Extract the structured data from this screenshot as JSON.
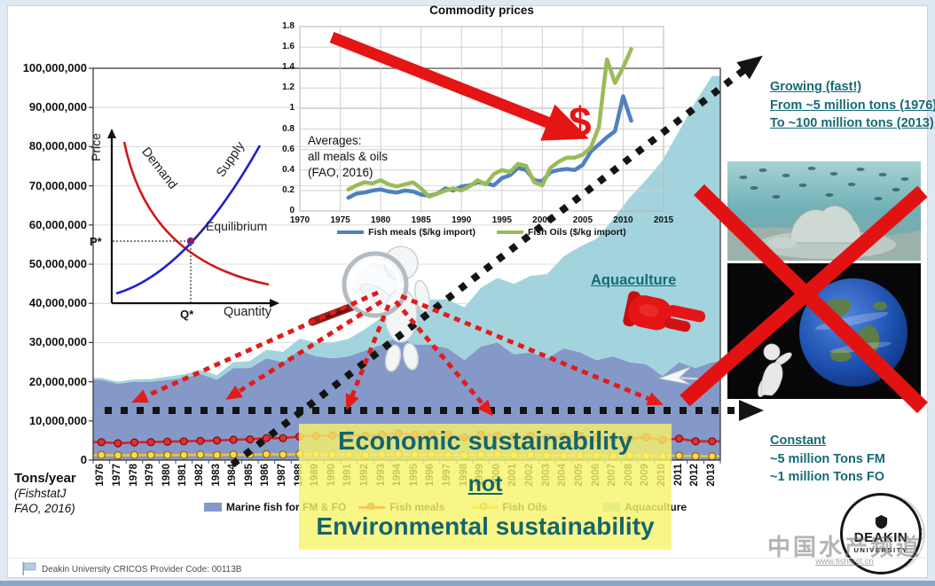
{
  "colors": {
    "teal_text": "#156b75",
    "highlight_yellow": "#f7f46a",
    "arrow_red": "#e51515",
    "dotted_black": "#141414",
    "marine_area": "#8599c8",
    "aquaculture_area": "#a3d4dd",
    "fish_meals_line": "#d92121",
    "fish_oils_line": "#efc234",
    "inset_meals_line": "#4f81bd",
    "inset_oils_line": "#9bbb59"
  },
  "slide": {
    "left_axis": {
      "title": "Tons/year",
      "source_line1": "(FishstatJ",
      "source_line2": "FAO, 2016)"
    },
    "annotations": {
      "growing": {
        "line1": "Growing (fast!)",
        "line2": "From ~5 million tons (1976)",
        "line3": "To ~100 million tons (2013)"
      },
      "constant": {
        "line1": "Constant",
        "line2": "~5 million Tons FM",
        "line3": "~1 million Tons FO"
      },
      "aquaculture": "Aquaculture",
      "dollar": "$",
      "highlight": {
        "line1": "Economic sustainability",
        "line2": "not",
        "line3": "Environmental sustainability"
      }
    },
    "footer": {
      "cricos": "Deakin University CRICOS Provider Code: 00113B"
    },
    "logo": {
      "title": "DEAKIN",
      "subtitle": "UNIVERSITY"
    },
    "watermark": {
      "text": "中国水产频道",
      "site": "www.fishfirst.cn"
    }
  },
  "chart_data": [
    {
      "id": "global-fish-production",
      "type": "area",
      "ylabel": "Tons/year",
      "source": "FishstatJ FAO, 2016",
      "ylim": [
        0,
        100000000
      ],
      "ytick_step": 10000000,
      "values_scale": "million tons",
      "legend_position": "bottom",
      "grid": true,
      "constant_reference_million_tons": 12.5,
      "categories": [
        1976,
        1977,
        1978,
        1979,
        1980,
        1981,
        1982,
        1983,
        1984,
        1985,
        1986,
        1987,
        1988,
        1989,
        1990,
        1991,
        1992,
        1993,
        1994,
        1995,
        1996,
        1997,
        1998,
        1999,
        2000,
        2001,
        2002,
        2003,
        2004,
        2005,
        2006,
        2007,
        2008,
        2009,
        2010,
        2011,
        2012,
        2013
      ],
      "series": [
        {
          "name": "Marine fish for FM & FO",
          "type": "area",
          "stacked": true,
          "color": "#8599c8",
          "values": [
            20.5,
            19.5,
            20,
            20,
            20.5,
            21,
            22,
            20.5,
            23.5,
            23.5,
            26,
            25,
            28,
            26.5,
            26,
            26.5,
            28,
            29.5,
            31.5,
            29.5,
            29.5,
            28.5,
            25.5,
            29,
            30,
            27,
            27.5,
            26,
            28.5,
            27.5,
            25.5,
            26.5,
            25,
            24.5,
            21.5,
            25,
            23.5,
            25
          ]
        },
        {
          "name": "Aquaculture",
          "type": "area",
          "stacked": true,
          "color": "#a3d4dd",
          "values": [
            0.5,
            0.5,
            0.6,
            0.7,
            0.8,
            0.9,
            1,
            1.2,
            1.5,
            1.8,
            2.2,
            2.6,
            3,
            3.5,
            4,
            4.5,
            5.5,
            7,
            8.5,
            10,
            11.5,
            12.5,
            13.5,
            15,
            16.5,
            18,
            19.5,
            21.5,
            23.5,
            27,
            31,
            35,
            42,
            47,
            55,
            59,
            68,
            73
          ]
        },
        {
          "name": "Fish meals",
          "type": "line",
          "color": "#d92121",
          "marker": "#e03030",
          "edge": "#7a0c0c",
          "values": [
            4.6,
            4.3,
            4.5,
            4.6,
            4.7,
            4.8,
            4.9,
            5,
            5.2,
            5.3,
            5.6,
            5.6,
            6,
            6.2,
            6.3,
            6.5,
            6.2,
            6.5,
            6.8,
            6.5,
            6.6,
            6.5,
            5.8,
            6.5,
            6.3,
            6,
            6.2,
            5.8,
            6,
            6.2,
            5.8,
            5.6,
            5.5,
            5.8,
            5.2,
            5.5,
            4.8,
            4.8
          ]
        },
        {
          "name": "Fish Oils",
          "type": "line",
          "color": "#efc234",
          "marker": "#ffd84d",
          "edge": "#8a6a00",
          "values": [
            1.3,
            1.2,
            1.3,
            1.3,
            1.3,
            1.3,
            1.4,
            1.3,
            1.4,
            1.4,
            1.5,
            1.4,
            1.5,
            1.5,
            1.4,
            1.4,
            1.3,
            1.4,
            1.5,
            1.4,
            1.4,
            1.3,
            1.2,
            1.4,
            1.4,
            1.3,
            1.3,
            1.2,
            1.1,
            1.2,
            1.1,
            1.1,
            1.2,
            1.1,
            1.1,
            1.1,
            1,
            1
          ]
        }
      ]
    },
    {
      "id": "commodity-prices",
      "type": "line",
      "title": "Commodity prices",
      "xlim": [
        1970,
        2015
      ],
      "xtick_step": 5,
      "ylim": [
        0,
        1.8
      ],
      "ytick_step": 0.2,
      "unit": "$/kg",
      "legend_position": "bottom",
      "grid": true,
      "annotation": {
        "line1": "Averages:",
        "line2": "all meals & oils",
        "line3": "(FAO, 2016)"
      },
      "x": [
        1976,
        1977,
        1978,
        1979,
        1980,
        1981,
        1982,
        1983,
        1984,
        1985,
        1986,
        1987,
        1988,
        1989,
        1990,
        1991,
        1992,
        1993,
        1994,
        1995,
        1996,
        1997,
        1998,
        1999,
        2000,
        2001,
        2002,
        2003,
        2004,
        2005,
        2006,
        2007,
        2008,
        2009,
        2010,
        2011
      ],
      "series": [
        {
          "name": "Fish meals ($/kg import)",
          "color": "#4f81bd",
          "values": [
            0.13,
            0.17,
            0.18,
            0.2,
            0.21,
            0.19,
            0.18,
            0.2,
            0.19,
            0.16,
            0.15,
            0.17,
            0.22,
            0.2,
            0.24,
            0.25,
            0.28,
            0.27,
            0.25,
            0.32,
            0.35,
            0.42,
            0.4,
            0.3,
            0.29,
            0.38,
            0.4,
            0.41,
            0.4,
            0.45,
            0.58,
            0.65,
            0.72,
            0.78,
            1.12,
            0.88
          ]
        },
        {
          "name": "Fish Oils ($/kg import)",
          "color": "#9bbb59",
          "values": [
            0.21,
            0.25,
            0.28,
            0.27,
            0.3,
            0.26,
            0.24,
            0.26,
            0.28,
            0.22,
            0.14,
            0.17,
            0.2,
            0.22,
            0.2,
            0.24,
            0.3,
            0.26,
            0.36,
            0.4,
            0.38,
            0.46,
            0.44,
            0.28,
            0.25,
            0.42,
            0.48,
            0.52,
            0.52,
            0.55,
            0.62,
            0.82,
            1.48,
            1.25,
            1.4,
            1.58
          ]
        }
      ]
    },
    {
      "id": "supply-demand",
      "type": "diagram",
      "xlabel": "Quantity",
      "ylabel": "Price",
      "curve_labels": {
        "demand": "Demand",
        "supply": "Supply"
      },
      "point_labels": {
        "equilibrium": "Equilibrium",
        "price": "P*",
        "quantity": "Q*"
      }
    }
  ]
}
